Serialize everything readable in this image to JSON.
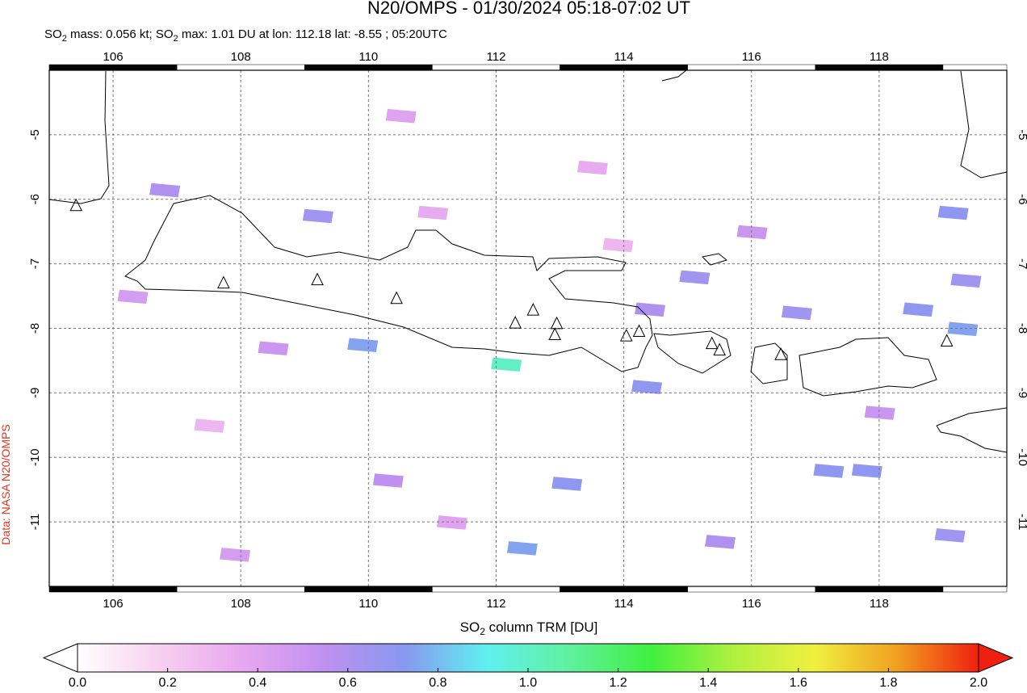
{
  "chart_data": {
    "type": "map",
    "title": "N20/OMPS - 01/30/2024 05:18-07:02 UT",
    "subtitle": [
      "SO",
      "2",
      " mass: 0.056 kt; SO",
      "2",
      " max: 1.01 DU at lon: 112.18 lat: -8.55 ; 05:20UTC"
    ],
    "credit": "Data: NASA N20/OMPS",
    "xlim": [
      105,
      120
    ],
    "ylim": [
      -12,
      -4
    ],
    "xticks": [
      106,
      108,
      110,
      112,
      114,
      116,
      118
    ],
    "yticks": [
      -5,
      -6,
      -7,
      -8,
      -9,
      -10,
      -11
    ],
    "grid": true,
    "pixels": {
      "lon": [
        112.15,
        109.9,
        109.2,
        106.8,
        112.4,
        113.1,
        110.3,
        114.35,
        115.1,
        114.4,
        116.7,
        118.6,
        119.3,
        119.15,
        119.35,
        117.8,
        117.2,
        119.1,
        108.5,
        111.0,
        107.5,
        113.5,
        116.0,
        110.5,
        107.9,
        111.3,
        118.0,
        106.3,
        113.9,
        115.5
      ],
      "lat": [
        -8.55,
        -8.25,
        -6.25,
        -5.85,
        -11.4,
        -10.4,
        -10.35,
        -8.9,
        -7.2,
        -7.7,
        -7.75,
        -7.7,
        -8.0,
        -6.2,
        -7.25,
        -10.2,
        -10.2,
        -11.2,
        -8.3,
        -6.2,
        -9.5,
        -5.5,
        -6.5,
        -4.7,
        -11.5,
        -11.0,
        -9.3,
        -7.5,
        -6.7,
        -11.3
      ],
      "values": [
        1.01,
        0.75,
        0.65,
        0.6,
        0.75,
        0.7,
        0.55,
        0.7,
        0.65,
        0.6,
        0.65,
        0.7,
        0.75,
        0.7,
        0.65,
        0.7,
        0.7,
        0.65,
        0.5,
        0.35,
        0.3,
        0.35,
        0.5,
        0.4,
        0.45,
        0.4,
        0.5,
        0.45,
        0.3,
        0.6
      ]
    },
    "volcanoes": {
      "lon": [
        105.42,
        107.73,
        109.2,
        110.44,
        112.3,
        112.58,
        112.95,
        112.92,
        114.04,
        114.24,
        115.38,
        115.5,
        116.46,
        119.06
      ],
      "lat": [
        -6.1,
        -7.3,
        -7.25,
        -7.54,
        -7.92,
        -7.72,
        -7.93,
        -8.1,
        -8.12,
        -8.05,
        -8.24,
        -8.34,
        -8.41,
        -8.2
      ]
    },
    "colorbar": {
      "label": [
        "SO",
        "2",
        " column TRM [DU]"
      ],
      "lim": [
        0,
        2
      ],
      "colors": [
        "#ffffff",
        "#f8d0f0",
        "#e8a8f0",
        "#c090f0",
        "#8898f0",
        "#60f0f0",
        "#60f0a0",
        "#40f040",
        "#b0f040",
        "#f0f040",
        "#f0a020",
        "#f02010"
      ],
      "ticks": [
        {
          "value": 0,
          "label": "0.0"
        },
        {
          "value": 0.2,
          "label": "0.2"
        },
        {
          "value": 0.4,
          "label": "0.4"
        },
        {
          "value": 0.6,
          "label": "0.6"
        },
        {
          "value": 0.8,
          "label": "0.8"
        },
        {
          "value": 1,
          "label": "1.0"
        },
        {
          "value": 1.2,
          "label": "1.2"
        },
        {
          "value": 1.4,
          "label": "1.4"
        },
        {
          "value": 1.6,
          "label": "1.6"
        },
        {
          "value": 1.8,
          "label": "1.8"
        },
        {
          "value": 2,
          "label": "2.0"
        }
      ]
    }
  }
}
